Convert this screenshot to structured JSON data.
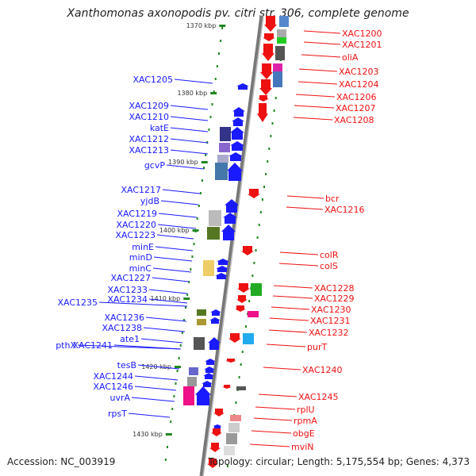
{
  "title": "Xanthomonas axonopodis pv. citri str. 306, complete genome",
  "footer": {
    "accession": "Accession: NC_003919",
    "topology": "Topology: circular; Length: 5,175,554 bp; Genes: 4,373"
  },
  "scale_ticks": [
    "1370 kbp",
    "1380 kbp",
    "1390 kbp",
    "1400 kbp",
    "1410 kbp",
    "1420 kbp",
    "1430 kbp"
  ],
  "left_labels": [
    "XAC1205",
    "XAC1209",
    "XAC1210",
    "katE",
    "XAC1212",
    "XAC1213",
    "gcvP",
    "XAC1217",
    "yjdB",
    "XAC1219",
    "XAC1220",
    "XAC1223",
    "minE",
    "minD",
    "minC",
    "XAC1227",
    "XAC1233",
    "XAC1234",
    "XAC1235",
    "XAC1236",
    "XAC1238",
    "ate1",
    "pthX",
    "XAC1241",
    "tesB",
    "XAC1244",
    "XAC1246",
    "uvrA",
    "rpsT"
  ],
  "right_labels": [
    "XAC1200",
    "XAC1201",
    "oliA",
    "XAC1203",
    "XAC1204",
    "XAC1206",
    "XAC1207",
    "XAC1208",
    "bcr",
    "XAC1216",
    "colR",
    "colS",
    "XAC1228",
    "XAC1229",
    "XAC1230",
    "XAC1231",
    "XAC1232",
    "purT",
    "XAC1240",
    "XAC1245",
    "rplU",
    "rpmA",
    "obgE",
    "mviN"
  ],
  "colors": {
    "forward": "#1a1aff",
    "reverse": "#ee1111",
    "axis": "#888888",
    "scale": "#228822"
  }
}
